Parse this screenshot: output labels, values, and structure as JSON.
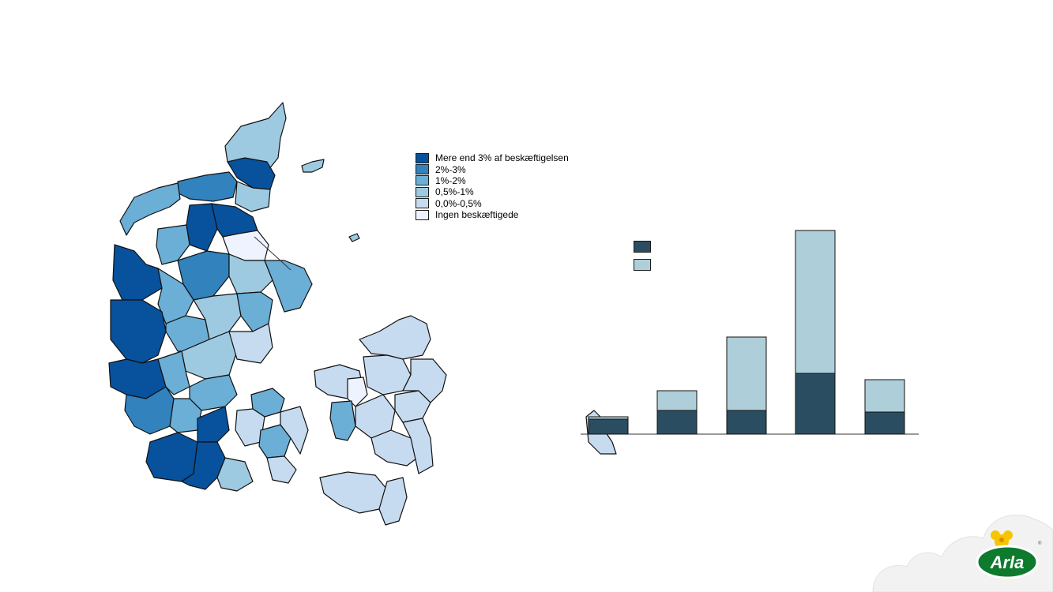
{
  "map": {
    "legend": [
      {
        "label": "Mere end 3% af beskæftigelsen",
        "color": "#08519c"
      },
      {
        "label": "2%-3%",
        "color": "#3182bd"
      },
      {
        "label": "1%-2%",
        "color": "#6baed6"
      },
      {
        "label": "0,5%-1%",
        "color": "#9ecae1"
      },
      {
        "label": "0,0%-0,5%",
        "color": "#c6dbef"
      },
      {
        "label": "Ingen beskæftigede",
        "color": "#eff3ff"
      }
    ]
  },
  "chart_data": {
    "type": "bar",
    "stacked": true,
    "categories": [
      "",
      "",
      "",
      "",
      ""
    ],
    "series": [
      {
        "name": "",
        "color": "#2b4d62",
        "values": [
          19,
          30,
          30,
          77,
          28
        ]
      },
      {
        "name": "",
        "color": "#aecfda",
        "values": [
          3,
          25,
          93,
          181,
          41
        ]
      }
    ],
    "ylim": [
      0,
      270
    ],
    "title": "",
    "xlabel": "",
    "ylabel": ""
  },
  "brand": {
    "logo_text": "Arla",
    "registered_mark": "®"
  }
}
